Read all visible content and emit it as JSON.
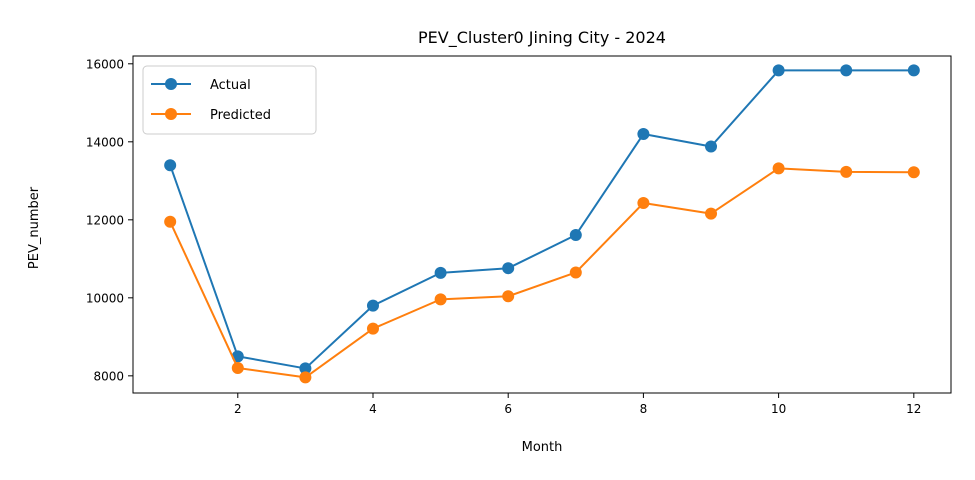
{
  "chart_data": {
    "type": "line",
    "title": "PEV_Cluster0 Jining City - 2024",
    "xlabel": "Month",
    "ylabel": "PEV_number",
    "x": [
      1,
      2,
      3,
      4,
      5,
      6,
      7,
      8,
      9,
      10,
      11,
      12
    ],
    "xlim": [
      0.45,
      12.55
    ],
    "ylim": [
      7560,
      16200
    ],
    "xticks": [
      2,
      4,
      6,
      8,
      10,
      12
    ],
    "yticks": [
      8000,
      10000,
      12000,
      14000,
      16000
    ],
    "grid": false,
    "legend": {
      "placement": "top-left"
    },
    "series": [
      {
        "name": "Actual",
        "color": "#1f77b4",
        "values": [
          13400,
          8500,
          8190,
          9800,
          10640,
          10760,
          11610,
          14200,
          13880,
          15830,
          15830,
          15830
        ]
      },
      {
        "name": "Predicted",
        "color": "#ff7f0e",
        "values": [
          11950,
          8200,
          7960,
          9210,
          9960,
          10040,
          10650,
          12430,
          12160,
          13320,
          13230,
          13220
        ]
      }
    ]
  }
}
